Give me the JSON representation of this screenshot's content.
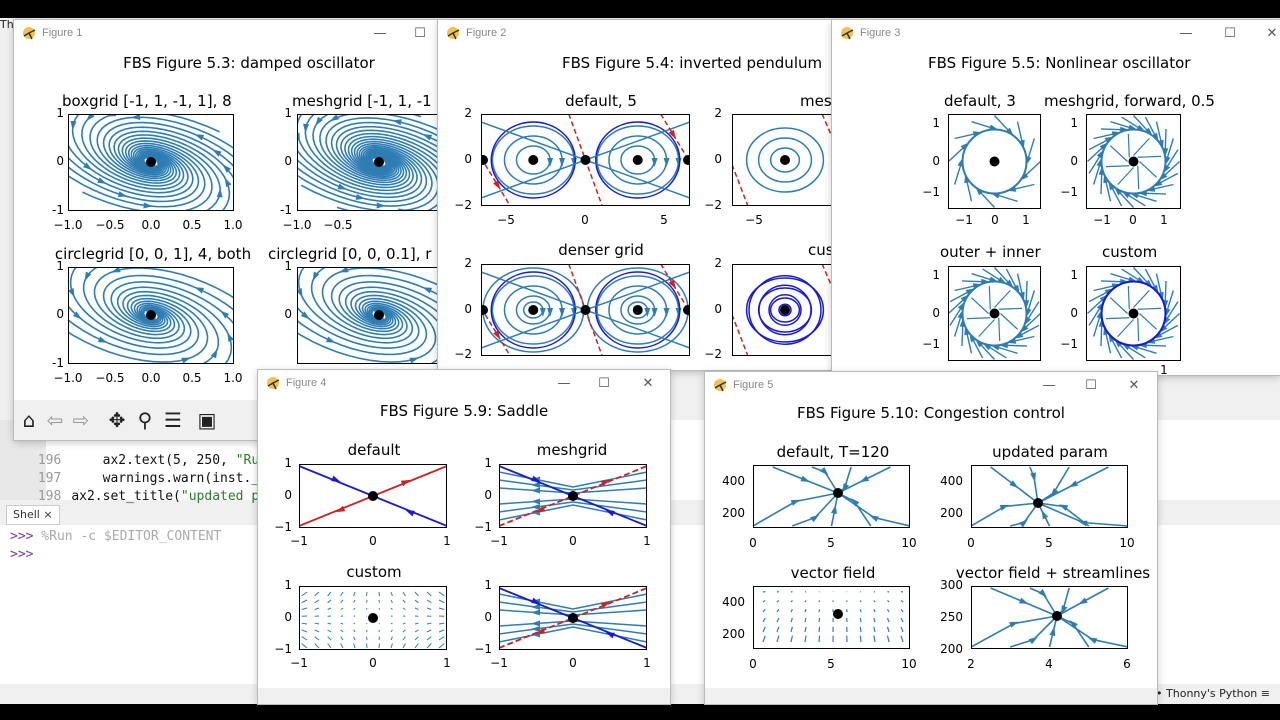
{
  "colors": {
    "stream": "#2d7db3",
    "red": "#cc2222",
    "blue": "#1a1ad6",
    "equilibrium": "#000000"
  },
  "thonny": {
    "code": [
      {
        "ln": "196",
        "pre": "    ax2.text(5, 250, ",
        "str": "\"Ru"
      },
      {
        "ln": "197",
        "pre": "    warnings.warn(inst._",
        "str": ""
      },
      {
        "ln": "198",
        "pre": "ax2.set_title(",
        "str": "\"updated pa"
      }
    ],
    "shell_tab": "Shell ×",
    "shell_prompt": ">>>",
    "shell_cmd": " %Run -c $EDITOR_CONTENT",
    "status_right": "3 • Thonny's Python ≡"
  },
  "fig1": {
    "window_title": "Figure 1",
    "title": "FBS Figure 5.3: damped oscillator",
    "axes": [
      {
        "title": "boxgrid [-1, 1, -1, 1], 8"
      },
      {
        "title": "meshgrid [-1, 1, -1"
      },
      {
        "title": "circlegrid [0, 0, 1], 4, both"
      },
      {
        "title": "circlegrid [0, 0, 0.1], r"
      }
    ],
    "yticks": [
      "1",
      "0",
      "-1"
    ],
    "xticks": [
      "−1.0",
      "−0.5",
      "0.0",
      "0.5",
      "1.0"
    ],
    "xticks_partial": [
      "−1.0",
      "−0.5"
    ]
  },
  "fig2": {
    "window_title": "Figure 2",
    "title": "FBS Figure 5.4: inverted pendulum",
    "axes": [
      {
        "title": "default, 5"
      },
      {
        "title": "mesh"
      },
      {
        "title": "denser grid"
      },
      {
        "title": "cus"
      }
    ],
    "yticks": [
      "2",
      "0",
      "−2"
    ],
    "xticks": [
      "−5",
      "0",
      "5"
    ],
    "xticks_partial": [
      "−5"
    ]
  },
  "fig3": {
    "window_title": "Figure 3",
    "title": "FBS Figure 5.5: Nonlinear oscillator",
    "axes": [
      {
        "title": "default, 3"
      },
      {
        "title": "meshgrid, forward, 0.5"
      },
      {
        "title": "outer + inner"
      },
      {
        "title": "custom"
      }
    ],
    "yticks": [
      "1",
      "0",
      "−1"
    ],
    "xticks": [
      "−1",
      "0",
      "1"
    ]
  },
  "fig4": {
    "window_title": "Figure 4",
    "title": "FBS Figure 5.9: Saddle",
    "axes": [
      {
        "title": "default"
      },
      {
        "title": "meshgrid"
      },
      {
        "title": "custom"
      },
      {
        "title": ""
      }
    ],
    "yticks": [
      "1",
      "0",
      "−1"
    ],
    "xticks": [
      "−1",
      "0",
      "1"
    ]
  },
  "fig5": {
    "window_title": "Figure 5",
    "title": "FBS Figure 5.10: Congestion control",
    "axes": [
      {
        "title": "default, T=120",
        "yticks": [
          "400",
          "200"
        ],
        "xticks": [
          "0",
          "5",
          "10"
        ]
      },
      {
        "title": "updated param",
        "yticks": [
          "400",
          "200"
        ],
        "xticks": [
          "0",
          "5",
          "10"
        ]
      },
      {
        "title": "vector field",
        "yticks": [
          "400",
          "200"
        ],
        "xticks": [
          "0",
          "5",
          "10"
        ]
      },
      {
        "title": "vector field + streamlines",
        "yticks": [
          "300",
          "250",
          "200"
        ],
        "xticks": [
          "2",
          "4",
          "6"
        ]
      }
    ]
  },
  "toolbar": {
    "home_icon": "⌂",
    "back_icon": "⇦",
    "forward_icon": "⇨",
    "pan_icon": "✥",
    "zoom_icon": "⚲",
    "configure_icon": "☰",
    "save_icon": "▣"
  },
  "window_controls": {
    "minimize": "—",
    "maximize": "☐",
    "close": "✕"
  }
}
